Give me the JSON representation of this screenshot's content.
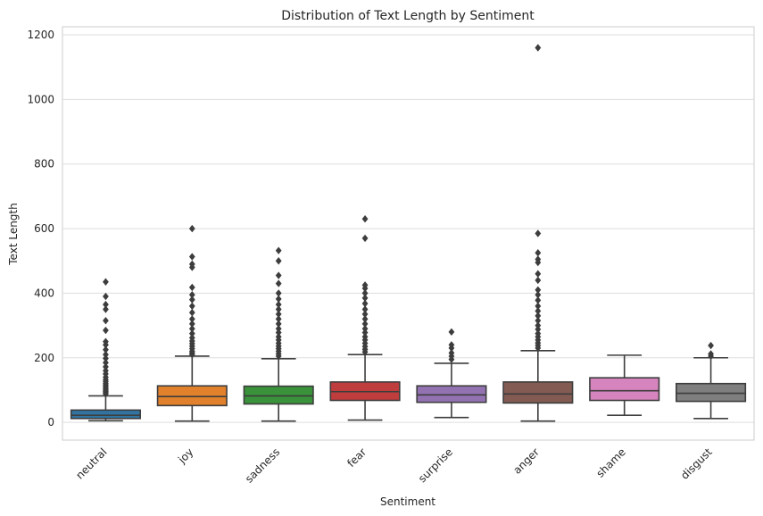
{
  "chart_data": {
    "type": "box",
    "title": "Distribution of Text Length by Sentiment",
    "xlabel": "Sentiment",
    "ylabel": "Text Length",
    "ylim": [
      -55,
      1225
    ],
    "yticks": [
      0,
      200,
      400,
      600,
      800,
      1000,
      1200
    ],
    "grid": "horizontal",
    "categories": [
      "neutral",
      "joy",
      "sadness",
      "fear",
      "surprise",
      "anger",
      "shame",
      "disgust"
    ],
    "colors": [
      "#3274a1",
      "#e1812c",
      "#3a923a",
      "#c03d3e",
      "#9372b2",
      "#845b53",
      "#d684bd",
      "#7f7f7f"
    ],
    "boxes": [
      {
        "category": "neutral",
        "whislo": 5,
        "q1": 12,
        "med": 22,
        "q3": 38,
        "whishi": 82,
        "fliers": [
          88,
          92,
          96,
          100,
          105,
          110,
          115,
          120,
          126,
          132,
          140,
          150,
          160,
          172,
          185,
          198,
          210,
          225,
          240,
          250,
          285,
          315,
          350,
          365,
          390,
          435
        ]
      },
      {
        "category": "joy",
        "whislo": 4,
        "q1": 52,
        "med": 80,
        "q3": 113,
        "whishi": 205,
        "fliers": [
          210,
          215,
          220,
          228,
          236,
          244,
          252,
          262,
          275,
          290,
          305,
          320,
          340,
          360,
          380,
          395,
          418,
          480,
          490,
          513,
          600
        ]
      },
      {
        "category": "sadness",
        "whislo": 4,
        "q1": 57,
        "med": 82,
        "q3": 112,
        "whishi": 197,
        "fliers": [
          205,
          212,
          220,
          228,
          236,
          245,
          255,
          265,
          278,
          290,
          305,
          320,
          335,
          350,
          365,
          382,
          400,
          430,
          455,
          500,
          532
        ]
      },
      {
        "category": "fear",
        "whislo": 7,
        "q1": 68,
        "med": 95,
        "q3": 125,
        "whishi": 210,
        "fliers": [
          218,
          226,
          235,
          245,
          255,
          265,
          278,
          290,
          305,
          320,
          335,
          350,
          368,
          385,
          400,
          415,
          425,
          570,
          630
        ]
      },
      {
        "category": "surprise",
        "whislo": 15,
        "q1": 62,
        "med": 85,
        "q3": 113,
        "whishi": 183,
        "fliers": [
          195,
          205,
          215,
          230,
          240,
          280
        ]
      },
      {
        "category": "anger",
        "whislo": 4,
        "q1": 60,
        "med": 88,
        "q3": 125,
        "whishi": 222,
        "fliers": [
          230,
          238,
          246,
          255,
          265,
          275,
          288,
          300,
          315,
          330,
          345,
          360,
          378,
          395,
          410,
          440,
          460,
          495,
          505,
          525,
          585,
          1160
        ]
      },
      {
        "category": "shame",
        "whislo": 22,
        "q1": 68,
        "med": 98,
        "q3": 138,
        "whishi": 208,
        "fliers": []
      },
      {
        "category": "disgust",
        "whislo": 12,
        "q1": 65,
        "med": 90,
        "q3": 120,
        "whishi": 200,
        "fliers": [
          205,
          212,
          238
        ]
      }
    ]
  }
}
